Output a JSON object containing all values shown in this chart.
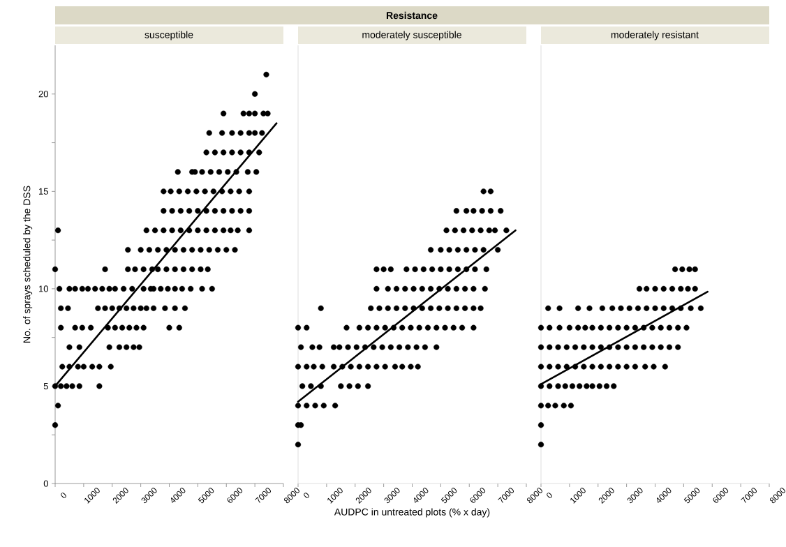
{
  "chart_data": [
    {
      "type": "scatter",
      "subtitle": "susceptible",
      "ylabel": "No. of sprays scheduled by the DSS",
      "xlim": [
        0,
        8000
      ],
      "ylim": [
        0,
        22.5
      ],
      "xticks": [
        0,
        1000,
        2000,
        3000,
        4000,
        5000,
        6000,
        7000,
        8000
      ],
      "yticks": [
        0,
        {
          "value": 2.5,
          "label": null
        },
        5,
        {
          "value": 7.5,
          "label": null
        },
        10,
        {
          "value": 12.5,
          "label": null
        },
        15,
        {
          "value": 17.5,
          "label": null
        },
        20
      ],
      "series": [
        {
          "type": "scatter",
          "marker": "circle",
          "color": "#000000",
          "x": [
            7400,
            7000,
            5900,
            6600,
            6800,
            7000,
            7300,
            7450,
            5400,
            5850,
            6200,
            6500,
            6800,
            7000,
            7250,
            5300,
            5600,
            5900,
            6200,
            6500,
            6800,
            7150,
            4300,
            4800,
            4900,
            5150,
            5450,
            5750,
            6050,
            6350,
            6750,
            7050,
            3800,
            4050,
            4350,
            4650,
            4950,
            5250,
            5550,
            5850,
            6150,
            6450,
            6800,
            3800,
            4100,
            4400,
            4700,
            5000,
            5300,
            5600,
            5900,
            6200,
            6500,
            6800,
            100,
            3200,
            3500,
            3800,
            4100,
            4400,
            4700,
            5000,
            5300,
            5600,
            5900,
            6150,
            6400,
            6800,
            2550,
            3000,
            3300,
            3600,
            3900,
            4200,
            4500,
            4800,
            5100,
            5400,
            5700,
            6000,
            6300,
            0,
            1750,
            2550,
            2800,
            3100,
            3400,
            3600,
            3900,
            4200,
            4500,
            4800,
            5100,
            5350,
            150,
            500,
            700,
            950,
            1150,
            1400,
            1650,
            1900,
            2100,
            2400,
            2700,
            3100,
            3350,
            3450,
            3700,
            3950,
            4200,
            4450,
            4750,
            5150,
            5500,
            200,
            450,
            1500,
            1750,
            2000,
            2250,
            2500,
            2750,
            3000,
            3200,
            3450,
            3850,
            4200,
            4550,
            200,
            700,
            950,
            1250,
            1850,
            2100,
            2350,
            2600,
            2850,
            3100,
            4000,
            4350,
            500,
            850,
            1900,
            2250,
            2500,
            2750,
            2950,
            250,
            500,
            800,
            1000,
            1300,
            1550,
            1950,
            0,
            200,
            400,
            600,
            850,
            1550,
            100,
            0
          ],
          "values": [
            21,
            20,
            19,
            19,
            19,
            19,
            19,
            19,
            18,
            18,
            18,
            18,
            18,
            18,
            18,
            17,
            17,
            17,
            17,
            17,
            17,
            17,
            16,
            16,
            16,
            16,
            16,
            16,
            16,
            16,
            16,
            16,
            15,
            15,
            15,
            15,
            15,
            15,
            15,
            15,
            15,
            15,
            15,
            14,
            14,
            14,
            14,
            14,
            14,
            14,
            14,
            14,
            14,
            14,
            13,
            13,
            13,
            13,
            13,
            13,
            13,
            13,
            13,
            13,
            13,
            13,
            13,
            13,
            12,
            12,
            12,
            12,
            12,
            12,
            12,
            12,
            12,
            12,
            12,
            12,
            12,
            11,
            11,
            11,
            11,
            11,
            11,
            11,
            11,
            11,
            11,
            11,
            11,
            11,
            10,
            10,
            10,
            10,
            10,
            10,
            10,
            10,
            10,
            10,
            10,
            10,
            10,
            10,
            10,
            10,
            10,
            10,
            10,
            10,
            10,
            9,
            9,
            9,
            9,
            9,
            9,
            9,
            9,
            9,
            9,
            9,
            9,
            9,
            9,
            8,
            8,
            8,
            8,
            8,
            8,
            8,
            8,
            8,
            8,
            8,
            8,
            7,
            7,
            7,
            7,
            7,
            7,
            7,
            6,
            6,
            6,
            6,
            6,
            6,
            6,
            5,
            5,
            5,
            5,
            5,
            5,
            4,
            3
          ]
        },
        {
          "type": "line",
          "marker": "none",
          "color": "#000000",
          "x": [
            0,
            7760
          ],
          "values": [
            5.0,
            18.5
          ]
        }
      ]
    },
    {
      "type": "scatter",
      "title": "Resistance",
      "subtitle": "moderately susceptible",
      "xlabel": "AUDPC in untreated plots (% x day)",
      "xlim": [
        0,
        8000
      ],
      "ylim": [
        0,
        22.5
      ],
      "tick_labels": "x",
      "xticks": [
        0,
        1000,
        2000,
        3000,
        4000,
        5000,
        6000,
        7000,
        8000
      ],
      "series": [
        {
          "type": "scatter",
          "marker": "circle",
          "color": "#000000",
          "x": [
            6500,
            6750,
            5550,
            5900,
            6150,
            6450,
            6750,
            7100,
            5200,
            5500,
            5800,
            6100,
            6400,
            6700,
            6900,
            7300,
            4650,
            5000,
            5300,
            5600,
            5900,
            6200,
            6500,
            7000,
            2750,
            3000,
            3250,
            3800,
            4100,
            4400,
            4700,
            5000,
            5300,
            5600,
            5900,
            6200,
            6600,
            2750,
            3150,
            3450,
            3750,
            4050,
            4350,
            4650,
            4950,
            5250,
            5550,
            5850,
            6150,
            6550,
            800,
            2550,
            2850,
            3150,
            3450,
            3750,
            4050,
            4350,
            4650,
            4950,
            5250,
            5550,
            5850,
            6150,
            6400,
            0,
            300,
            1700,
            2150,
            2450,
            2750,
            3050,
            3350,
            3650,
            3950,
            4250,
            4550,
            4850,
            5150,
            5450,
            5750,
            6150,
            100,
            500,
            750,
            1250,
            1450,
            1750,
            2050,
            2350,
            2650,
            2950,
            3250,
            3550,
            3850,
            4150,
            4450,
            4850,
            0,
            300,
            550,
            850,
            1250,
            1550,
            1850,
            2150,
            2450,
            2750,
            3050,
            3400,
            3650,
            3950,
            4200,
            150,
            450,
            800,
            1500,
            1800,
            2100,
            2450,
            0,
            300,
            600,
            900,
            1300,
            0,
            100,
            0
          ],
          "values": [
            15,
            15,
            14,
            14,
            14,
            14,
            14,
            14,
            13,
            13,
            13,
            13,
            13,
            13,
            13,
            13,
            12,
            12,
            12,
            12,
            12,
            12,
            12,
            12,
            11,
            11,
            11,
            11,
            11,
            11,
            11,
            11,
            11,
            11,
            11,
            11,
            11,
            10,
            10,
            10,
            10,
            10,
            10,
            10,
            10,
            10,
            10,
            10,
            10,
            10,
            9,
            9,
            9,
            9,
            9,
            9,
            9,
            9,
            9,
            9,
            9,
            9,
            9,
            9,
            9,
            8,
            8,
            8,
            8,
            8,
            8,
            8,
            8,
            8,
            8,
            8,
            8,
            8,
            8,
            8,
            8,
            8,
            7,
            7,
            7,
            7,
            7,
            7,
            7,
            7,
            7,
            7,
            7,
            7,
            7,
            7,
            7,
            7,
            6,
            6,
            6,
            6,
            6,
            6,
            6,
            6,
            6,
            6,
            6,
            6,
            6,
            6,
            6,
            5,
            5,
            5,
            5,
            5,
            5,
            5,
            4,
            4,
            4,
            4,
            4,
            3,
            3,
            2
          ]
        },
        {
          "type": "line",
          "marker": "none",
          "color": "#000000",
          "x": [
            0,
            7620
          ],
          "values": [
            4.2,
            13.0
          ]
        }
      ]
    },
    {
      "type": "scatter",
      "subtitle": "moderately resistant",
      "xlim": [
        0,
        8000
      ],
      "ylim": [
        0,
        22.5
      ],
      "tick_labels": "x",
      "xticks": [
        0,
        1000,
        2000,
        3000,
        4000,
        5000,
        6000,
        7000,
        8000
      ],
      "series": [
        {
          "type": "scatter",
          "marker": "circle",
          "color": "#000000",
          "x": [
            4700,
            4950,
            5200,
            5400,
            3450,
            3700,
            4000,
            4300,
            4600,
            4900,
            5150,
            5400,
            250,
            650,
            1300,
            1700,
            2150,
            2500,
            2800,
            3100,
            3400,
            3700,
            4000,
            4300,
            4600,
            4900,
            5250,
            5600,
            0,
            300,
            650,
            1000,
            1300,
            1550,
            1800,
            2100,
            2400,
            2700,
            3000,
            3300,
            3600,
            3900,
            4200,
            4500,
            4800,
            5100,
            0,
            300,
            600,
            900,
            1200,
            1500,
            1800,
            2100,
            2400,
            2700,
            3000,
            3300,
            3600,
            3900,
            4200,
            4500,
            4800,
            0,
            300,
            600,
            900,
            1200,
            1500,
            1800,
            2100,
            2400,
            2700,
            3000,
            3300,
            3650,
            3950,
            4350,
            0,
            300,
            600,
            850,
            1100,
            1350,
            1600,
            1800,
            2050,
            2300,
            2550,
            0,
            250,
            500,
            800,
            1050,
            0,
            0
          ],
          "values": [
            11,
            11,
            11,
            11,
            10,
            10,
            10,
            10,
            10,
            10,
            10,
            10,
            9,
            9,
            9,
            9,
            9,
            9,
            9,
            9,
            9,
            9,
            9,
            9,
            9,
            9,
            9,
            9,
            8,
            8,
            8,
            8,
            8,
            8,
            8,
            8,
            8,
            8,
            8,
            8,
            8,
            8,
            8,
            8,
            8,
            8,
            7,
            7,
            7,
            7,
            7,
            7,
            7,
            7,
            7,
            7,
            7,
            7,
            7,
            7,
            7,
            7,
            7,
            6,
            6,
            6,
            6,
            6,
            6,
            6,
            6,
            6,
            6,
            6,
            6,
            6,
            6,
            6,
            5,
            5,
            5,
            5,
            5,
            5,
            5,
            5,
            5,
            5,
            5,
            4,
            4,
            4,
            4,
            4,
            3,
            2
          ]
        },
        {
          "type": "line",
          "marker": "none",
          "color": "#000000",
          "x": [
            0,
            5840
          ],
          "values": [
            5.1,
            9.85
          ]
        }
      ]
    }
  ]
}
